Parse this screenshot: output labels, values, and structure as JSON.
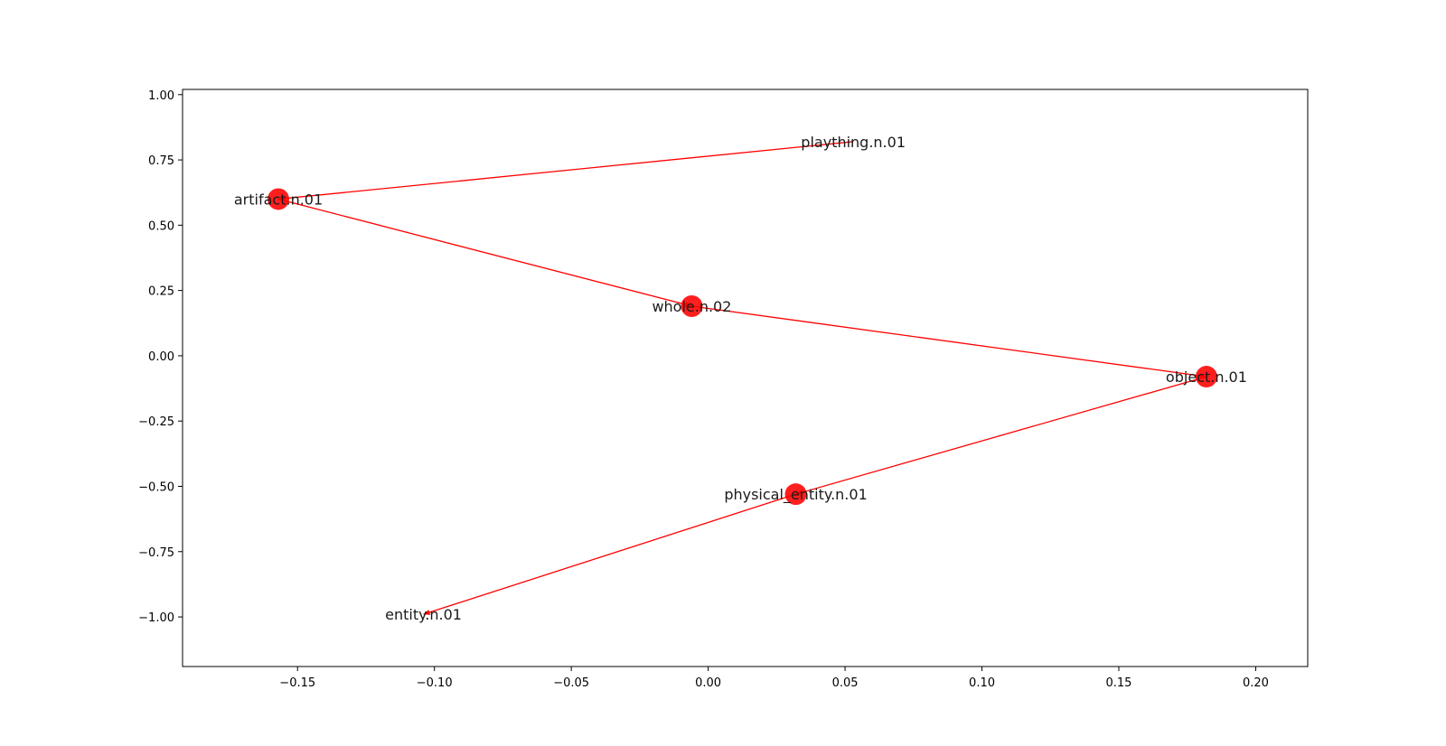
{
  "chart_data": {
    "type": "scatter",
    "title": "",
    "xlabel": "",
    "ylabel": "",
    "xlim": [
      -0.192,
      0.219
    ],
    "ylim": [
      -1.19,
      1.02
    ],
    "xticks": [
      -0.15,
      -0.1,
      -0.05,
      0.0,
      0.05,
      0.1,
      0.15,
      0.2
    ],
    "xtick_labels": [
      "−0.15",
      "−0.10",
      "−0.05",
      "0.00",
      "0.05",
      "0.10",
      "0.15",
      "0.20"
    ],
    "yticks": [
      1.0,
      0.75,
      0.5,
      0.25,
      0.0,
      -0.25,
      -0.5,
      -0.75,
      -1.0
    ],
    "ytick_labels": [
      "1.00",
      "0.75",
      "0.50",
      "0.25",
      "0.00",
      "−0.25",
      "−0.50",
      "−0.75",
      "−1.00"
    ],
    "grid": false,
    "node_color": "#ff0000",
    "edge_color": "#ff0000",
    "nodes": [
      {
        "id": "plaything.n.01",
        "label": "plaything.n.01",
        "x": 0.053,
        "y": 0.82,
        "degree": 1,
        "marker": false
      },
      {
        "id": "artifact.n.01",
        "label": "artifact.n.01",
        "x": -0.157,
        "y": 0.6,
        "degree": 2,
        "marker": true
      },
      {
        "id": "whole.n.02",
        "label": "whole.n.02",
        "x": -0.006,
        "y": 0.19,
        "degree": 2,
        "marker": true
      },
      {
        "id": "object.n.01",
        "label": "object.n.01",
        "x": 0.182,
        "y": -0.08,
        "degree": 2,
        "marker": true
      },
      {
        "id": "physical_entity.n.01",
        "label": "physical_entity.n.01",
        "x": 0.032,
        "y": -0.53,
        "degree": 2,
        "marker": true
      },
      {
        "id": "entity.n.01",
        "label": "entity.n.01",
        "x": -0.104,
        "y": -0.99,
        "degree": 1,
        "marker": false
      }
    ],
    "edges": [
      {
        "source": "plaything.n.01",
        "target": "artifact.n.01"
      },
      {
        "source": "artifact.n.01",
        "target": "whole.n.02"
      },
      {
        "source": "whole.n.02",
        "target": "object.n.01"
      },
      {
        "source": "object.n.01",
        "target": "physical_entity.n.01"
      },
      {
        "source": "physical_entity.n.01",
        "target": "entity.n.01"
      }
    ]
  }
}
